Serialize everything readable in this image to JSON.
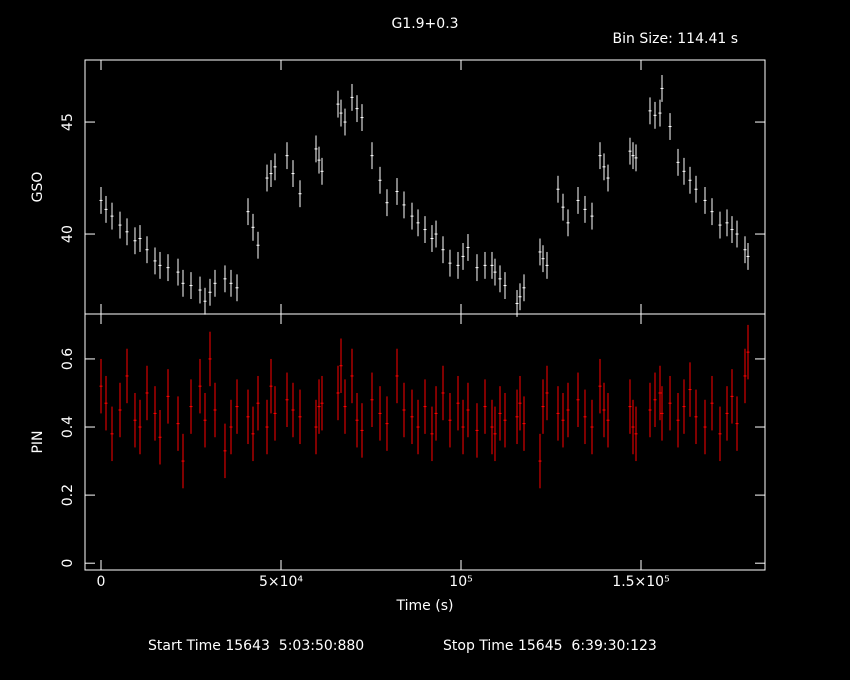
{
  "title": "G1.9+0.3",
  "bin_size": "Bin Size: 114.41 s",
  "start_time": "Start Time 15643  5:03:50:880",
  "stop_time": "Stop Time 15645  6:39:30:123",
  "chart_data": [
    {
      "type": "errorbar",
      "ylabel": "GSO",
      "color": "#ffffff",
      "x": [
        0,
        1390,
        3060,
        5280,
        7220,
        9440,
        10830,
        12780,
        15000,
        16390,
        18610,
        21390,
        22780,
        25000,
        27500,
        28890,
        30280,
        31670,
        34440,
        36110,
        37780,
        40830,
        42220,
        43610,
        46110,
        47220,
        48330,
        51670,
        53330,
        55280,
        59720,
        60560,
        61390,
        65830,
        66670,
        67780,
        69720,
        71110,
        72500,
        75280,
        77500,
        79440,
        82220,
        84170,
        86390,
        88060,
        90000,
        91940,
        93060,
        95000,
        96940,
        99170,
        100560,
        101940,
        104440,
        106670,
        108610,
        109440,
        110830,
        112220,
        115560,
        116390,
        117500,
        121940,
        122780,
        123890,
        126940,
        128330,
        129720,
        132500,
        134440,
        136390,
        138610,
        139720,
        140830,
        146940,
        147780,
        148610,
        152500,
        153890,
        155280,
        155830,
        158060,
        160280,
        161940,
        163610,
        165280,
        167780,
        169720,
        171940,
        173890,
        175280,
        176670,
        178890,
        179720
      ],
      "values": [
        41.5,
        41.1,
        40.8,
        40.4,
        40.1,
        39.7,
        39.8,
        39.3,
        38.8,
        38.6,
        38.5,
        38.3,
        37.8,
        37.7,
        37.5,
        37.0,
        37.4,
        37.8,
        38.0,
        37.8,
        37.6,
        41.0,
        40.3,
        39.5,
        42.5,
        42.7,
        43.0,
        43.5,
        42.7,
        41.8,
        43.8,
        43.3,
        42.8,
        45.8,
        45.4,
        45.0,
        46.1,
        45.6,
        45.2,
        43.5,
        42.4,
        41.4,
        41.9,
        41.3,
        40.8,
        40.5,
        40.2,
        39.8,
        40.0,
        39.3,
        38.7,
        38.6,
        39.0,
        39.4,
        38.5,
        38.6,
        38.6,
        38.3,
        38.0,
        37.7,
        36.9,
        37.2,
        37.6,
        39.2,
        38.9,
        38.6,
        42.0,
        41.2,
        40.5,
        41.5,
        41.1,
        40.8,
        43.5,
        43.0,
        42.5,
        43.7,
        43.5,
        43.4,
        45.5,
        45.3,
        45.4,
        46.5,
        44.8,
        43.2,
        42.8,
        42.4,
        42.0,
        41.5,
        41.0,
        40.4,
        40.5,
        40.2,
        40.0,
        39.3,
        39.0
      ],
      "errors": [
        0.6,
        0.6,
        0.6,
        0.6,
        0.6,
        0.6,
        0.6,
        0.6,
        0.6,
        0.6,
        0.6,
        0.6,
        0.6,
        0.6,
        0.6,
        0.6,
        0.6,
        0.6,
        0.6,
        0.6,
        0.6,
        0.6,
        0.6,
        0.6,
        0.6,
        0.6,
        0.6,
        0.6,
        0.6,
        0.6,
        0.6,
        0.6,
        0.6,
        0.6,
        0.6,
        0.6,
        0.6,
        0.6,
        0.6,
        0.6,
        0.6,
        0.6,
        0.6,
        0.6,
        0.6,
        0.6,
        0.6,
        0.6,
        0.6,
        0.6,
        0.6,
        0.6,
        0.6,
        0.6,
        0.6,
        0.6,
        0.6,
        0.6,
        0.6,
        0.6,
        0.6,
        0.6,
        0.6,
        0.6,
        0.6,
        0.6,
        0.6,
        0.6,
        0.6,
        0.6,
        0.6,
        0.6,
        0.6,
        0.6,
        0.6,
        0.6,
        0.6,
        0.6,
        0.6,
        0.6,
        0.6,
        0.6,
        0.6,
        0.6,
        0.6,
        0.6,
        0.6,
        0.6,
        0.6,
        0.6,
        0.6,
        0.6,
        0.6,
        0.6,
        0.6
      ],
      "xlim": [
        -4444,
        184444
      ],
      "ylim": [
        36.43,
        47.77
      ],
      "yticks": [
        40,
        45
      ]
    },
    {
      "type": "errorbar",
      "ylabel": "PIN",
      "xlabel": "Time (s)",
      "color": "#ff0000",
      "x": [
        0,
        1390,
        3060,
        5280,
        7220,
        9440,
        10830,
        12780,
        15000,
        16390,
        18610,
        21390,
        22780,
        25000,
        27500,
        28890,
        30280,
        31670,
        34440,
        36110,
        37780,
        40830,
        42220,
        43610,
        46110,
        47220,
        48330,
        51670,
        53330,
        55280,
        59720,
        60560,
        61390,
        65830,
        66670,
        67780,
        69720,
        71110,
        72500,
        75280,
        77500,
        79440,
        82220,
        84170,
        86390,
        88060,
        90000,
        91940,
        93060,
        95000,
        96940,
        99170,
        100560,
        101940,
        104440,
        106670,
        108610,
        109440,
        110830,
        112220,
        115560,
        116390,
        117500,
        121940,
        122780,
        123890,
        126940,
        128330,
        129720,
        132500,
        134440,
        136390,
        138610,
        139720,
        140830,
        146940,
        147780,
        148610,
        152500,
        153890,
        155280,
        155830,
        158060,
        160280,
        161940,
        163610,
        165280,
        167780,
        169720,
        171940,
        173890,
        175280,
        176670,
        178890,
        179720
      ],
      "values": [
        0.52,
        0.47,
        0.38,
        0.45,
        0.55,
        0.42,
        0.4,
        0.5,
        0.44,
        0.37,
        0.49,
        0.41,
        0.3,
        0.46,
        0.52,
        0.42,
        0.6,
        0.45,
        0.33,
        0.4,
        0.46,
        0.43,
        0.38,
        0.47,
        0.4,
        0.52,
        0.44,
        0.48,
        0.45,
        0.43,
        0.4,
        0.46,
        0.47,
        0.5,
        0.58,
        0.46,
        0.55,
        0.42,
        0.39,
        0.48,
        0.44,
        0.41,
        0.55,
        0.45,
        0.43,
        0.4,
        0.46,
        0.38,
        0.44,
        0.5,
        0.42,
        0.47,
        0.4,
        0.45,
        0.39,
        0.46,
        0.4,
        0.38,
        0.44,
        0.42,
        0.43,
        0.47,
        0.41,
        0.3,
        0.46,
        0.5,
        0.44,
        0.42,
        0.45,
        0.48,
        0.43,
        0.4,
        0.52,
        0.45,
        0.42,
        0.46,
        0.4,
        0.38,
        0.45,
        0.48,
        0.5,
        0.44,
        0.47,
        0.42,
        0.46,
        0.51,
        0.43,
        0.4,
        0.47,
        0.38,
        0.44,
        0.49,
        0.41,
        0.55,
        0.62
      ],
      "errors": [
        0.08,
        0.08,
        0.08,
        0.08,
        0.08,
        0.08,
        0.08,
        0.08,
        0.08,
        0.08,
        0.08,
        0.08,
        0.08,
        0.08,
        0.08,
        0.08,
        0.08,
        0.08,
        0.08,
        0.08,
        0.08,
        0.08,
        0.08,
        0.08,
        0.08,
        0.08,
        0.08,
        0.08,
        0.08,
        0.08,
        0.08,
        0.08,
        0.08,
        0.08,
        0.08,
        0.08,
        0.08,
        0.08,
        0.08,
        0.08,
        0.08,
        0.08,
        0.08,
        0.08,
        0.08,
        0.08,
        0.08,
        0.08,
        0.08,
        0.08,
        0.08,
        0.08,
        0.08,
        0.08,
        0.08,
        0.08,
        0.08,
        0.08,
        0.08,
        0.08,
        0.08,
        0.08,
        0.08,
        0.08,
        0.08,
        0.08,
        0.08,
        0.08,
        0.08,
        0.08,
        0.08,
        0.08,
        0.08,
        0.08,
        0.08,
        0.08,
        0.08,
        0.08,
        0.08,
        0.08,
        0.08,
        0.08,
        0.08,
        0.08,
        0.08,
        0.08,
        0.08,
        0.08,
        0.08,
        0.08,
        0.08,
        0.08,
        0.08,
        0.08,
        0.08
      ],
      "xlim": [
        -4444,
        184444
      ],
      "ylim": [
        -0.02,
        0.732
      ],
      "yticks": [
        0,
        0.2,
        0.4,
        0.6
      ],
      "xticks": [
        0,
        {
          "value": 50000,
          "label": "5×10⁴"
        },
        {
          "value": 100000,
          "label": "10⁵"
        },
        {
          "value": 150000,
          "label": "1.5×10⁵"
        }
      ]
    }
  ]
}
